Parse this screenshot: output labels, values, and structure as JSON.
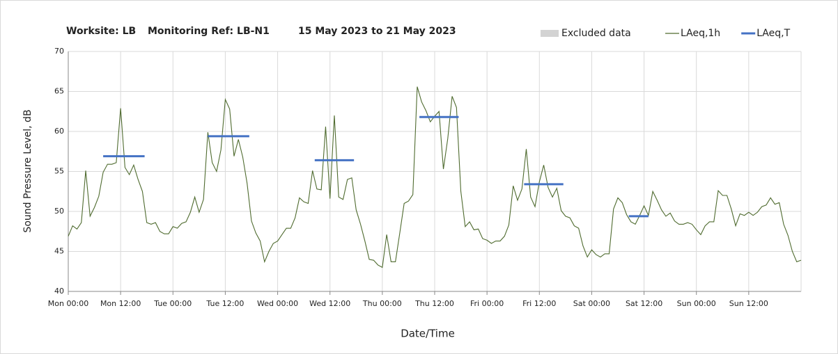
{
  "chart_data": {
    "type": "line",
    "title": [
      "Worksite: LB",
      "Monitoring Ref: LB-N1",
      "15 May 2023 to 21 May 2023"
    ],
    "x_label": "Date/Time",
    "y_label": "Sound Pressure Level, dB",
    "xlim": [
      0,
      168
    ],
    "xticks": [
      {
        "value": 0,
        "label": "Mon 00:00"
      },
      {
        "value": 12,
        "label": "Mon 12:00"
      },
      {
        "value": 24,
        "label": "Tue 00:00"
      },
      {
        "value": 36,
        "label": "Tue 12:00"
      },
      {
        "value": 48,
        "label": "Wed 00:00"
      },
      {
        "value": 60,
        "label": "Wed 12:00"
      },
      {
        "value": 72,
        "label": "Thu 00:00"
      },
      {
        "value": 84,
        "label": "Thu 12:00"
      },
      {
        "value": 96,
        "label": "Fri 00:00"
      },
      {
        "value": 108,
        "label": "Fri 12:00"
      },
      {
        "value": 120,
        "label": "Sat 00:00"
      },
      {
        "value": 132,
        "label": "Sat 12:00"
      },
      {
        "value": 144,
        "label": "Sun 00:00"
      },
      {
        "value": 156,
        "label": "Sun 12:00"
      }
    ],
    "ylim": [
      40,
      70
    ],
    "yticks": [
      40,
      45,
      50,
      55,
      60,
      65,
      70
    ],
    "grid": true,
    "legend_position": "top-right",
    "excluded": {
      "name": "Excluded data",
      "color": "#d3d3d3"
    },
    "series": [
      {
        "name": "LAeq,1h",
        "color": "#4f6b2f",
        "x": [
          0,
          1,
          2,
          3,
          4,
          5,
          6,
          7,
          8,
          9,
          10,
          11,
          12,
          13,
          14,
          15,
          16,
          17,
          18,
          19,
          20,
          21,
          22,
          23,
          24,
          25,
          26,
          27,
          28,
          29,
          30,
          31,
          32,
          33,
          34,
          35,
          36,
          37,
          38,
          39,
          40,
          41,
          42,
          43,
          44,
          45,
          46,
          47,
          48,
          49,
          50,
          51,
          52,
          53,
          54,
          55,
          56,
          57,
          58,
          59,
          60,
          61,
          62,
          63,
          64,
          65,
          66,
          67,
          68,
          69,
          70,
          71,
          72,
          73,
          74,
          75,
          76,
          77,
          78,
          79,
          80,
          81,
          82,
          83,
          84,
          85,
          86,
          87,
          88,
          89,
          90,
          91,
          92,
          93,
          94,
          95,
          96,
          97,
          98,
          99,
          100,
          101,
          102,
          103,
          104,
          105,
          106,
          107,
          108,
          109,
          110,
          111,
          112,
          113,
          114,
          115,
          116,
          117,
          118,
          119,
          120,
          121,
          122,
          123,
          124,
          125,
          126,
          127,
          128,
          129,
          130,
          131,
          132,
          133,
          134,
          135,
          136,
          137,
          138,
          139,
          140,
          141,
          142,
          143,
          144,
          145,
          146,
          147,
          148,
          149,
          150,
          151,
          152,
          153,
          154,
          155,
          156,
          157,
          158,
          159,
          160,
          161,
          162,
          163,
          164,
          165,
          166,
          167,
          168
        ],
        "values": [
          46.9,
          48.2,
          47.8,
          48.6,
          55.1,
          49.4,
          50.5,
          51.9,
          54.9,
          55.9,
          55.9,
          56.1,
          62.9,
          55.5,
          54.6,
          55.8,
          54.0,
          52.5,
          48.6,
          48.4,
          48.6,
          47.5,
          47.2,
          47.2,
          48.1,
          47.9,
          48.5,
          48.7,
          49.9,
          51.8,
          49.9,
          51.5,
          59.9,
          56.1,
          55.0,
          57.7,
          64.0,
          62.8,
          56.9,
          59.0,
          56.8,
          53.5,
          48.8,
          47.3,
          46.3,
          43.7,
          45.0,
          46.0,
          46.3,
          47.1,
          47.9,
          47.9,
          49.2,
          51.7,
          51.2,
          51.0,
          55.1,
          52.8,
          52.7,
          60.6,
          51.6,
          62.0,
          51.8,
          51.5,
          54.0,
          54.2,
          50.2,
          48.4,
          46.3,
          44.0,
          43.9,
          43.3,
          43.0,
          47.1,
          43.7,
          43.7,
          47.3,
          51.0,
          51.3,
          52.1,
          65.6,
          63.7,
          62.6,
          61.2,
          61.9,
          62.5,
          55.3,
          59.1,
          64.4,
          63.0,
          52.5,
          48.1,
          48.7,
          47.7,
          47.8,
          46.6,
          46.4,
          46.0,
          46.3,
          46.3,
          46.9,
          48.3,
          53.2,
          51.4,
          52.8,
          57.8,
          51.8,
          50.6,
          53.7,
          55.8,
          53.0,
          51.8,
          52.9,
          50.1,
          49.4,
          49.2,
          48.2,
          47.9,
          45.7,
          44.3,
          45.2,
          44.6,
          44.3,
          44.7,
          44.7,
          50.3,
          51.7,
          51.1,
          49.6,
          48.7,
          48.4,
          49.5,
          50.7,
          49.5,
          52.5,
          51.4,
          50.2,
          49.4,
          49.8,
          48.8,
          48.4,
          48.4,
          48.6,
          48.4,
          47.7,
          47.1,
          48.2,
          48.7,
          48.7,
          52.6,
          52.0,
          52.0,
          50.3,
          48.2,
          49.7,
          49.5,
          49.9,
          49.5,
          49.9,
          50.6,
          50.8,
          51.7,
          50.9,
          51.1,
          48.4,
          47.0,
          45.0,
          43.7,
          43.9
        ]
      },
      {
        "name": "LAeq,T",
        "color": "#4472c4",
        "segments": [
          {
            "x": [
              8,
              17.5
            ],
            "value": 56.9
          },
          {
            "x": [
              32,
              41.5
            ],
            "value": 59.4
          },
          {
            "x": [
              56.5,
              65.5
            ],
            "value": 56.4
          },
          {
            "x": [
              80.5,
              89.5
            ],
            "value": 61.8
          },
          {
            "x": [
              104.5,
              113.5
            ],
            "value": 53.4
          },
          {
            "x": [
              128.5,
              133
            ],
            "value": 49.4
          }
        ]
      }
    ]
  }
}
